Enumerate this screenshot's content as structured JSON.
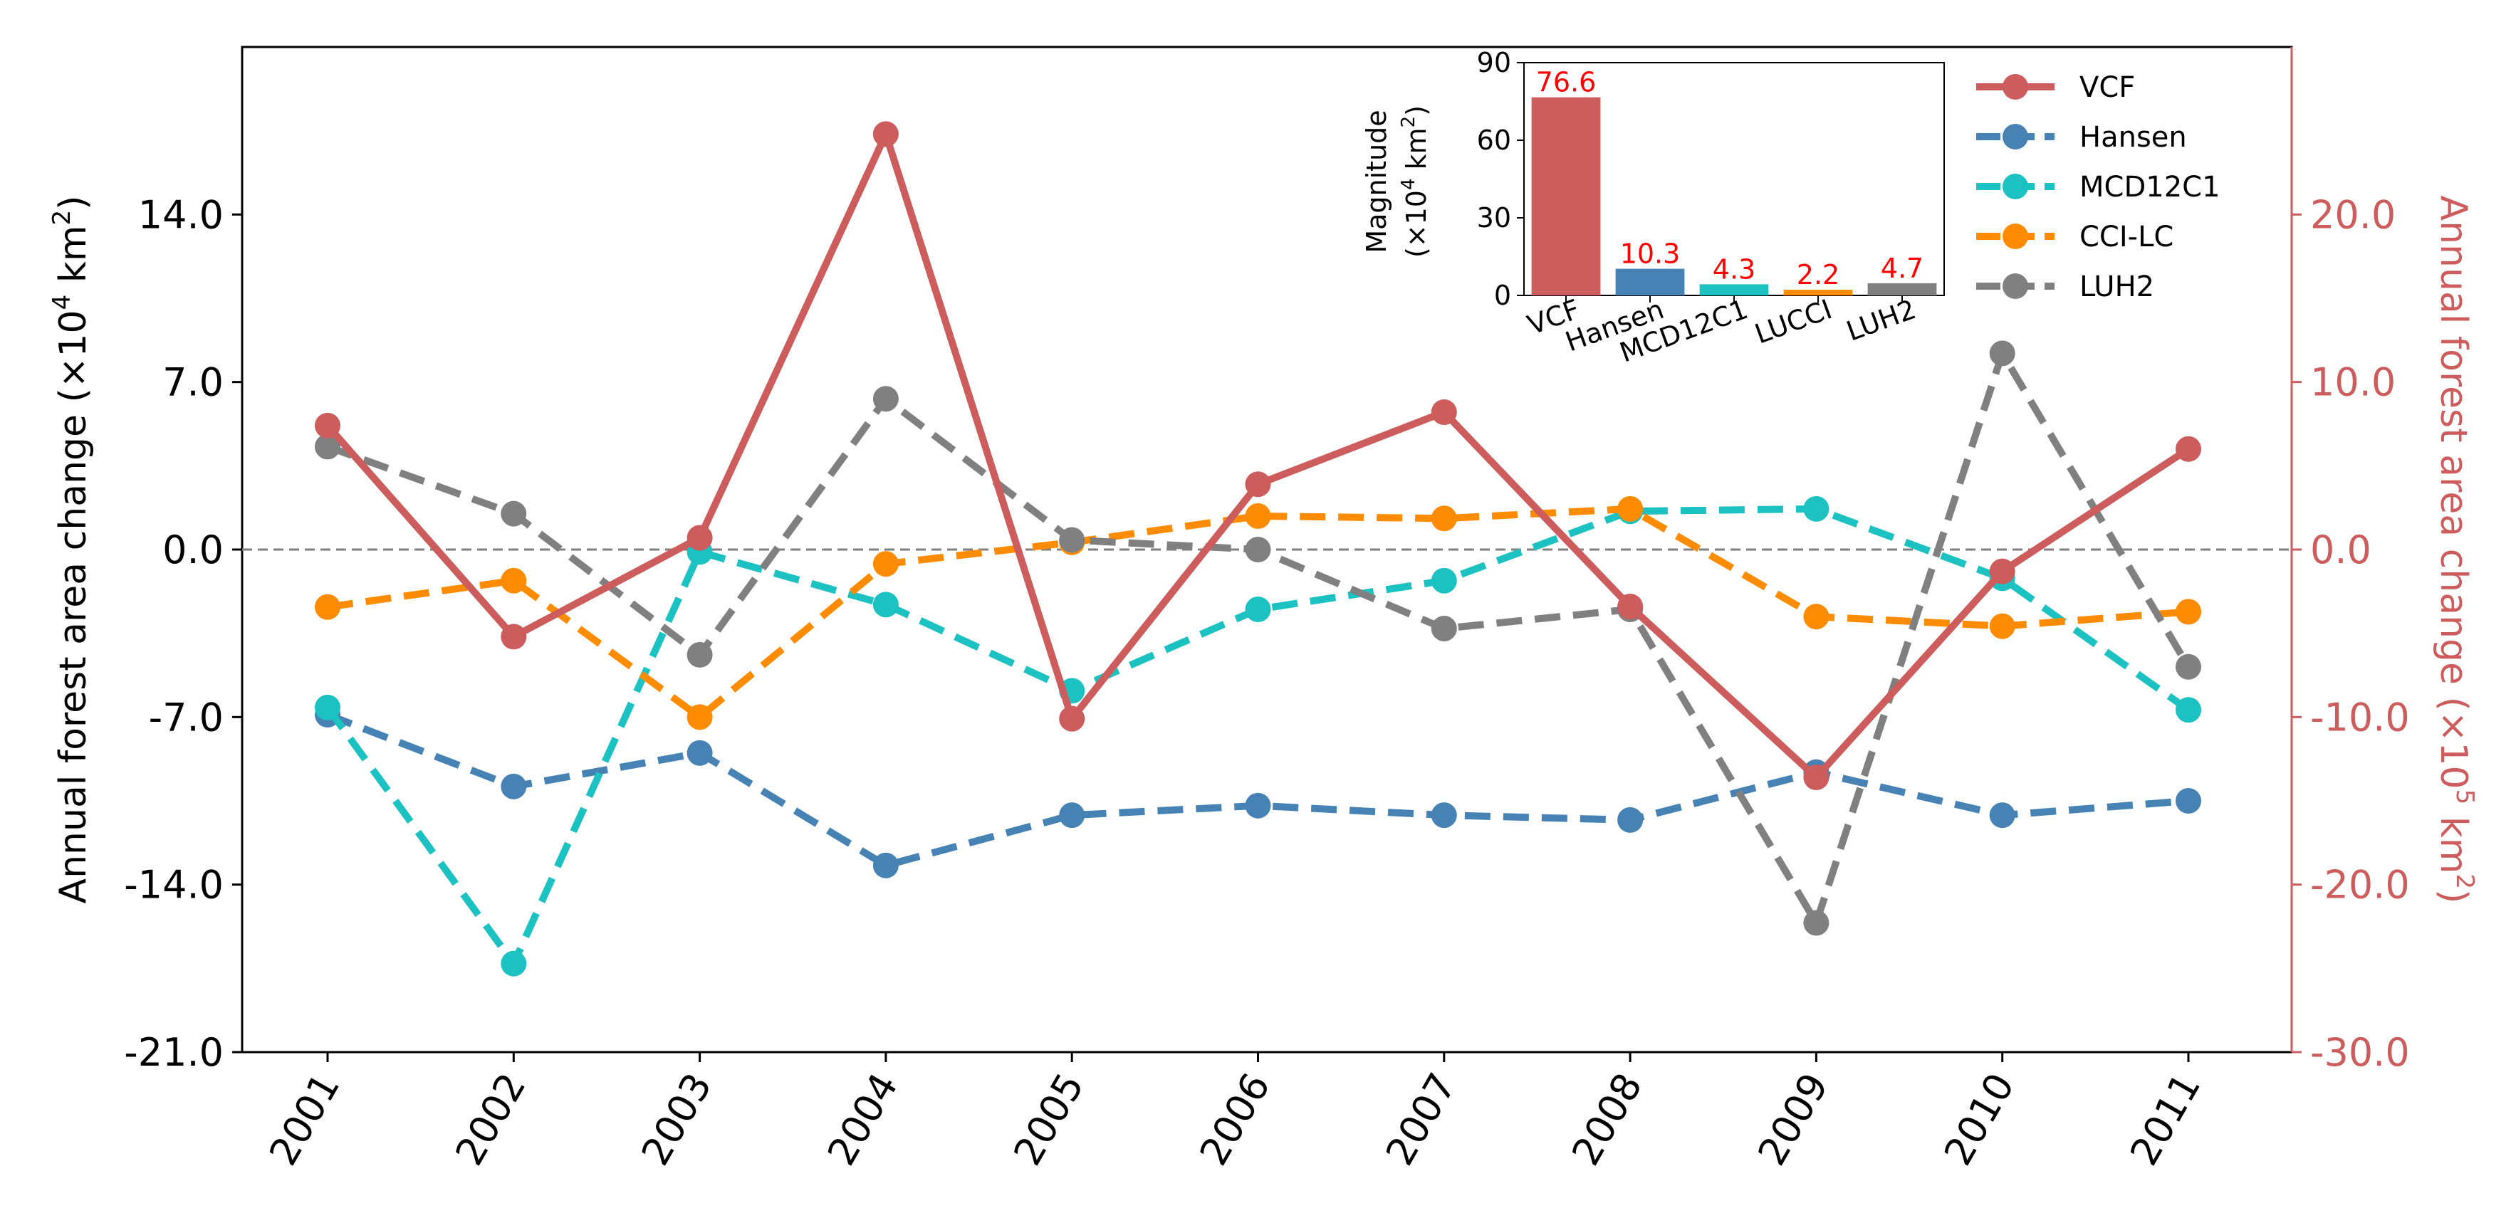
{
  "colors": {
    "VCF": "#cd5c5c",
    "Hansen": "#4682b4",
    "MCD12C1": "#1cc2c2",
    "CCI-LC": "#ff8c00",
    "LUH2": "#808080",
    "right_axis": "#cd5c5c",
    "value_label": "#ff0000",
    "zero_line": "#808080"
  },
  "chart_data": [
    {
      "type": "line",
      "x": [
        "2001",
        "2002",
        "2003",
        "2004",
        "2005",
        "2006",
        "2007",
        "2008",
        "2009",
        "2010",
        "2011"
      ],
      "left_axis": {
        "label_prefix": "Annual forest area change (×10",
        "label_exp1": "4",
        "label_mid": " km",
        "label_exp2": "2",
        "label_suffix": ")",
        "ylim": [
          -21,
          21
        ],
        "ticks": [
          "-21.0",
          "-14.0",
          "-7.0",
          "0.0",
          "7.0",
          "14.0"
        ]
      },
      "right_axis": {
        "label_prefix": "Annual forest area change (×10",
        "label_exp1": "5",
        "label_mid": " km",
        "label_exp2": "2",
        "label_suffix": ")",
        "ylim": [
          -30,
          30
        ],
        "ticks": [
          "-30.0",
          "-20.0",
          "-10.0",
          "0.0",
          "10.0",
          "20.0"
        ]
      },
      "zero_line": true,
      "series": [
        {
          "name": "VCF",
          "axis": "right",
          "style": "solid",
          "values": [
            7.4,
            -5.2,
            0.7,
            24.8,
            -10.1,
            3.9,
            8.2,
            -3.4,
            -13.6,
            -1.3,
            6.0
          ]
        },
        {
          "name": "Hansen",
          "axis": "left",
          "style": "dashed",
          "values": [
            -6.9,
            -9.9,
            -8.5,
            -13.2,
            -11.1,
            -10.7,
            -11.1,
            -11.3,
            -9.3,
            -11.1,
            -10.5
          ]
        },
        {
          "name": "MCD12C1",
          "axis": "left",
          "style": "dashed",
          "values": [
            -6.6,
            -17.3,
            -0.1,
            -2.3,
            -5.9,
            -2.5,
            -1.3,
            1.6,
            1.7,
            -1.2,
            -6.7
          ]
        },
        {
          "name": "CCI-LC",
          "axis": "left",
          "style": "dashed",
          "values": [
            -2.4,
            -1.3,
            -7.0,
            -0.6,
            0.3,
            1.4,
            1.3,
            1.7,
            -2.8,
            -3.2,
            -2.6
          ]
        },
        {
          "name": "LUH2",
          "axis": "left",
          "style": "dashed",
          "values": [
            4.3,
            1.5,
            -4.4,
            6.3,
            0.4,
            0.0,
            -3.3,
            -2.5,
            -15.6,
            8.2,
            -4.9
          ]
        }
      ],
      "legend": {
        "position": "top-right",
        "entries": [
          "VCF",
          "Hansen",
          "MCD12C1",
          "CCI-LC",
          "LUH2"
        ]
      }
    },
    {
      "type": "bar",
      "inset": true,
      "categories": [
        "VCF",
        "Hansen",
        "MCD12C1",
        "LUCCI",
        "LUH2"
      ],
      "values": [
        76.6,
        10.3,
        4.3,
        2.2,
        4.7
      ],
      "value_labels": [
        "76.6",
        "10.3",
        "4.3",
        "2.2",
        "4.7"
      ],
      "ylabel_line1": "Magnitude",
      "ylabel_line2_prefix": "(×10",
      "ylabel_line2_exp1": "4",
      "ylabel_line2_mid": " km",
      "ylabel_line2_exp2": "2",
      "ylabel_line2_suffix": ")",
      "ylim": [
        0,
        90
      ],
      "ticks": [
        "0",
        "30",
        "60",
        "90"
      ]
    }
  ]
}
